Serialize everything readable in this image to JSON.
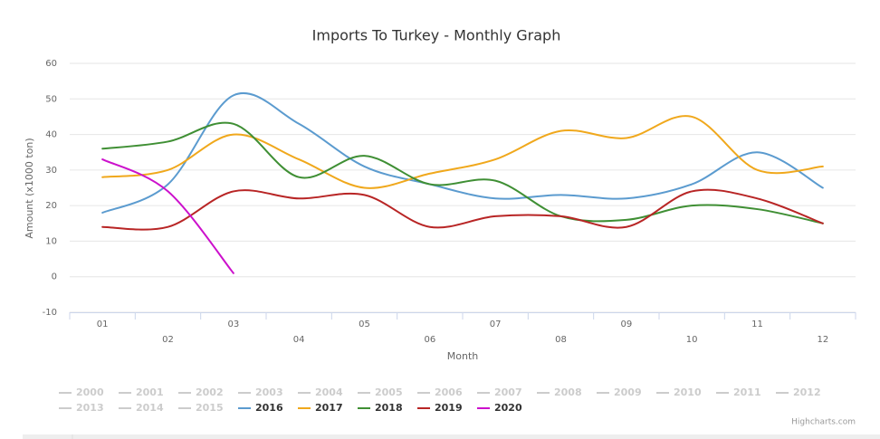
{
  "chart_data": {
    "type": "line",
    "title": "Imports To Turkey - Monthly Graph",
    "x_label": "Month",
    "y_label": "Amount (x1000 ton)",
    "credits": "Highcharts.com",
    "categories": [
      "01",
      "02",
      "03",
      "04",
      "05",
      "06",
      "07",
      "08",
      "09",
      "10",
      "11",
      "12"
    ],
    "ylim": [
      -10,
      60
    ],
    "yticks": [
      -10,
      0,
      10,
      20,
      30,
      40,
      50,
      60
    ],
    "grid": true,
    "smooth": true,
    "legend": "bottom",
    "series": [
      {
        "name": "2000",
        "visible": false,
        "values": [
          null,
          null,
          null,
          null,
          null,
          null,
          null,
          null,
          null,
          null,
          null,
          null
        ]
      },
      {
        "name": "2001",
        "visible": false,
        "values": [
          null,
          null,
          null,
          null,
          null,
          null,
          null,
          null,
          null,
          null,
          null,
          null
        ]
      },
      {
        "name": "2002",
        "visible": false,
        "values": [
          null,
          null,
          null,
          null,
          null,
          null,
          null,
          null,
          null,
          null,
          null,
          null
        ]
      },
      {
        "name": "2003",
        "visible": false,
        "values": [
          null,
          null,
          null,
          null,
          null,
          null,
          null,
          null,
          null,
          null,
          null,
          null
        ]
      },
      {
        "name": "2004",
        "visible": false,
        "values": [
          null,
          null,
          null,
          null,
          null,
          null,
          null,
          null,
          null,
          null,
          null,
          null
        ]
      },
      {
        "name": "2005",
        "visible": false,
        "values": [
          null,
          null,
          null,
          null,
          null,
          null,
          null,
          null,
          null,
          null,
          null,
          null
        ]
      },
      {
        "name": "2006",
        "visible": false,
        "values": [
          null,
          null,
          null,
          null,
          null,
          null,
          null,
          null,
          null,
          null,
          null,
          null
        ]
      },
      {
        "name": "2007",
        "visible": false,
        "values": [
          null,
          null,
          null,
          null,
          null,
          null,
          null,
          null,
          null,
          null,
          null,
          null
        ]
      },
      {
        "name": "2008",
        "visible": false,
        "values": [
          null,
          null,
          null,
          null,
          null,
          null,
          null,
          null,
          null,
          null,
          null,
          null
        ]
      },
      {
        "name": "2009",
        "visible": false,
        "values": [
          null,
          null,
          null,
          null,
          null,
          null,
          null,
          null,
          null,
          null,
          null,
          null
        ]
      },
      {
        "name": "2010",
        "visible": false,
        "values": [
          null,
          null,
          null,
          null,
          null,
          null,
          null,
          null,
          null,
          null,
          null,
          null
        ]
      },
      {
        "name": "2011",
        "visible": false,
        "values": [
          null,
          null,
          null,
          null,
          null,
          null,
          null,
          null,
          null,
          null,
          null,
          null
        ]
      },
      {
        "name": "2012",
        "visible": false,
        "values": [
          null,
          null,
          null,
          null,
          null,
          null,
          null,
          null,
          null,
          null,
          null,
          null
        ]
      },
      {
        "name": "2013",
        "visible": false,
        "values": [
          null,
          null,
          null,
          null,
          null,
          null,
          null,
          null,
          null,
          null,
          null,
          null
        ]
      },
      {
        "name": "2014",
        "visible": false,
        "values": [
          null,
          null,
          null,
          null,
          null,
          null,
          null,
          null,
          null,
          null,
          null,
          null
        ]
      },
      {
        "name": "2015",
        "visible": false,
        "values": [
          null,
          null,
          null,
          null,
          null,
          null,
          null,
          null,
          null,
          null,
          null,
          null
        ]
      },
      {
        "name": "2016",
        "visible": true,
        "color": "#5b9bcf",
        "values": [
          18,
          26,
          51,
          43,
          31,
          26,
          22,
          23,
          22,
          26,
          35,
          25
        ]
      },
      {
        "name": "2017",
        "visible": true,
        "color": "#f0a81c",
        "values": [
          28,
          30,
          40,
          33,
          25,
          29,
          33,
          41,
          39,
          45,
          30,
          31
        ]
      },
      {
        "name": "2018",
        "visible": true,
        "color": "#3f8f34",
        "values": [
          36,
          38,
          43,
          28,
          34,
          26,
          27,
          17,
          16,
          20,
          19,
          15
        ]
      },
      {
        "name": "2019",
        "visible": true,
        "color": "#b82525",
        "values": [
          14,
          14,
          24,
          22,
          23,
          14,
          17,
          17,
          14,
          24,
          22,
          15
        ]
      },
      {
        "name": "2020",
        "visible": true,
        "color": "#cc11cc",
        "values": [
          33,
          24,
          1,
          null,
          null,
          null,
          null,
          null,
          null,
          null,
          null,
          null
        ]
      }
    ]
  }
}
